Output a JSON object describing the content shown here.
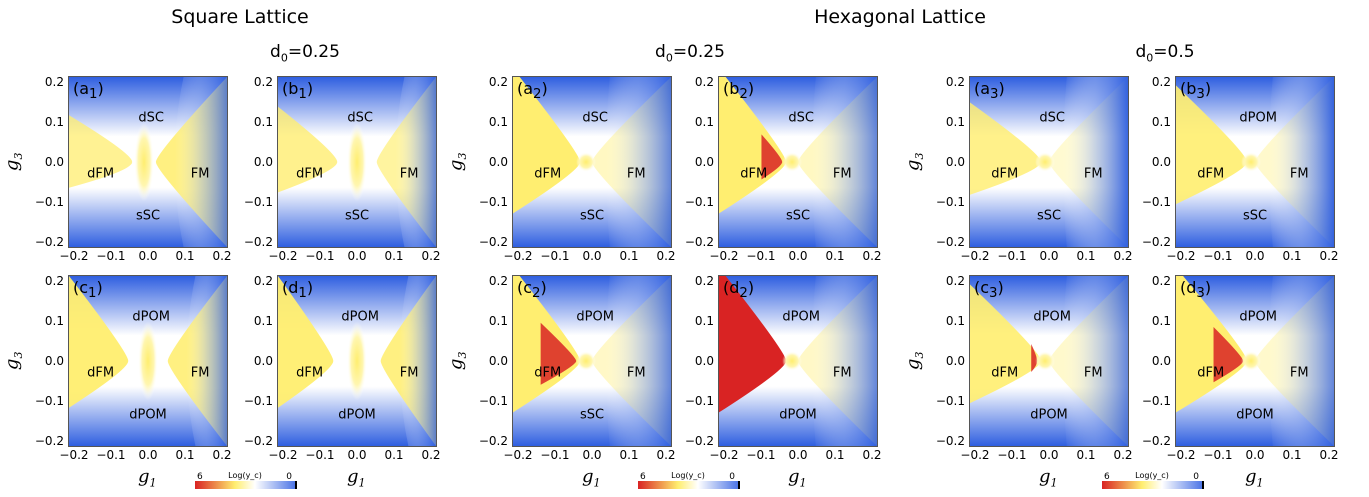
{
  "headers": {
    "square": "Square Lattice",
    "hexagonal": "Hexagonal Lattice"
  },
  "d0_labels": [
    {
      "pre": "d",
      "sub": "0",
      "post": "=0.25"
    },
    {
      "pre": "d",
      "sub": "0",
      "post": "=0.25"
    },
    {
      "pre": "d",
      "sub": "0",
      "post": "=0.5"
    }
  ],
  "axes": {
    "xlabel": {
      "main": "g",
      "sub": "1"
    },
    "ylabel": {
      "main": "g",
      "sub": "3"
    },
    "xticks": [
      "−0.2",
      "−0.1",
      "0.0",
      "0.1",
      "0.2"
    ],
    "yticks": [
      "0.2",
      "0.1",
      "0.0",
      "−0.1",
      "−0.2"
    ]
  },
  "colorbar": {
    "min": "6",
    "max": "0",
    "label": "Log(y_c)"
  },
  "colors": {
    "blue": "#2f5fe0",
    "white": "#ffffff",
    "yellow": "#ffee70",
    "red": "#d92323"
  },
  "chart_data": [
    {
      "type": "heatmap",
      "panel": "a",
      "sub": "1",
      "lattice": "Square Lattice",
      "xlim": [
        -0.2,
        0.2
      ],
      "ylim": [
        -0.2,
        0.2
      ],
      "regions": [
        "dSC",
        "dFM",
        "FM",
        "sSC"
      ]
    },
    {
      "type": "heatmap",
      "panel": "b",
      "sub": "1",
      "lattice": "Square Lattice",
      "xlim": [
        -0.2,
        0.2
      ],
      "ylim": [
        -0.2,
        0.2
      ],
      "regions": [
        "dSC",
        "dFM",
        "FM",
        "sSC"
      ]
    },
    {
      "type": "heatmap",
      "panel": "a",
      "sub": "2",
      "lattice": "Hexagonal Lattice",
      "xlim": [
        -0.2,
        0.2
      ],
      "ylim": [
        -0.2,
        0.2
      ],
      "regions": [
        "dSC",
        "dFM",
        "FM",
        "sSC"
      ]
    },
    {
      "type": "heatmap",
      "panel": "b",
      "sub": "2",
      "lattice": "Hexagonal Lattice",
      "xlim": [
        -0.2,
        0.2
      ],
      "ylim": [
        -0.2,
        0.2
      ],
      "regions": [
        "dSC",
        "dFM",
        "FM",
        "sSC"
      ]
    },
    {
      "type": "heatmap",
      "panel": "a",
      "sub": "3",
      "lattice": "Hexagonal Lattice",
      "xlim": [
        -0.2,
        0.2
      ],
      "ylim": [
        -0.2,
        0.2
      ],
      "regions": [
        "dSC",
        "dFM",
        "FM",
        "sSC"
      ]
    },
    {
      "type": "heatmap",
      "panel": "b",
      "sub": "3",
      "lattice": "Hexagonal Lattice",
      "xlim": [
        -0.2,
        0.2
      ],
      "ylim": [
        -0.2,
        0.2
      ],
      "regions": [
        "dPOM",
        "dFM",
        "FM",
        "sSC"
      ]
    },
    {
      "type": "heatmap",
      "panel": "c",
      "sub": "1",
      "lattice": "Square Lattice",
      "xlim": [
        -0.2,
        0.2
      ],
      "ylim": [
        -0.2,
        0.2
      ],
      "regions": [
        "dPOM",
        "dFM",
        "FM",
        "dPOM"
      ]
    },
    {
      "type": "heatmap",
      "panel": "d",
      "sub": "1",
      "lattice": "Square Lattice",
      "xlim": [
        -0.2,
        0.2
      ],
      "ylim": [
        -0.2,
        0.2
      ],
      "regions": [
        "dPOM",
        "dFM",
        "FM",
        "dPOM"
      ]
    },
    {
      "type": "heatmap",
      "panel": "c",
      "sub": "2",
      "lattice": "Hexagonal Lattice",
      "xlim": [
        -0.2,
        0.2
      ],
      "ylim": [
        -0.2,
        0.2
      ],
      "regions": [
        "dPOM",
        "dFM",
        "FM",
        "sSC"
      ]
    },
    {
      "type": "heatmap",
      "panel": "d",
      "sub": "2",
      "lattice": "Hexagonal Lattice",
      "xlim": [
        -0.2,
        0.2
      ],
      "ylim": [
        -0.2,
        0.2
      ],
      "regions": [
        "dPOM",
        "",
        "FM",
        "dPOM"
      ]
    },
    {
      "type": "heatmap",
      "panel": "c",
      "sub": "3",
      "lattice": "Hexagonal Lattice",
      "xlim": [
        -0.2,
        0.2
      ],
      "ylim": [
        -0.2,
        0.2
      ],
      "regions": [
        "dPOM",
        "dFM",
        "FM",
        "dPOM"
      ]
    },
    {
      "type": "heatmap",
      "panel": "d",
      "sub": "3",
      "lattice": "Hexagonal Lattice",
      "xlim": [
        -0.2,
        0.2
      ],
      "ylim": [
        -0.2,
        0.2
      ],
      "regions": [
        "dPOM",
        "dFM",
        "FM",
        "dPOM"
      ]
    }
  ]
}
